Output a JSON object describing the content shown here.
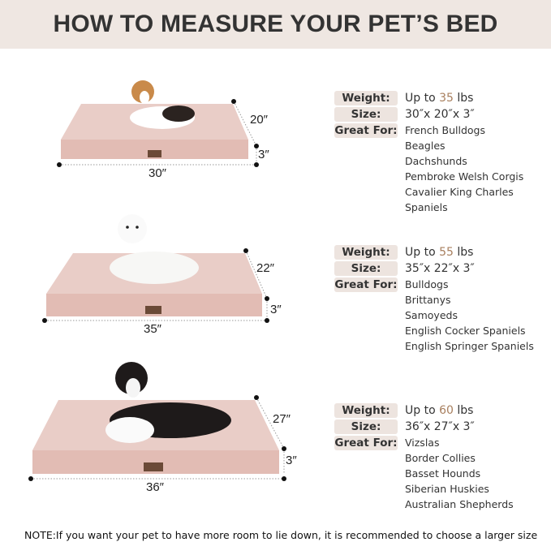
{
  "title": "HOW TO MEASURE YOUR PET’S BED",
  "colors": {
    "header_bg": "#efe7e2",
    "label_bg": "#ede4df",
    "accent": "#a87f5e",
    "bed": "#e6c6bf"
  },
  "labels": {
    "weight": "Weight:",
    "size": "Size:",
    "great_for": "Great For:"
  },
  "beds": [
    {
      "length": "30″",
      "width": "20″",
      "height": "3″",
      "weight_prefix": "Up to ",
      "weight_num": "35",
      "weight_unit": " lbs",
      "size": "30″x 20″x 3″",
      "breeds": [
        "French Bulldogs",
        "Beagles",
        "Dachshunds",
        "Pembroke Welsh Corgis",
        "Cavalier King Charles Spaniels"
      ]
    },
    {
      "length": "35″",
      "width": "22″",
      "height": "3″",
      "weight_prefix": "Up to ",
      "weight_num": "55",
      "weight_unit": " lbs",
      "size": "35″x 22″x 3″",
      "breeds": [
        "Bulldogs",
        "Brittanys",
        "Samoyeds",
        "English Cocker Spaniels",
        "English Springer Spaniels"
      ]
    },
    {
      "length": "36″",
      "width": "27″",
      "height": "3″",
      "weight_prefix": "Up to ",
      "weight_num": "60",
      "weight_unit": " lbs",
      "size": "36″x 27″x 3″",
      "breeds": [
        "Vizslas",
        "Border Collies",
        "Basset Hounds",
        "Siberian Huskies",
        "Australian Shepherds"
      ]
    }
  ],
  "note": "NOTE:If you want your pet to have more room to lie down, it is recommended to choose a larger size"
}
